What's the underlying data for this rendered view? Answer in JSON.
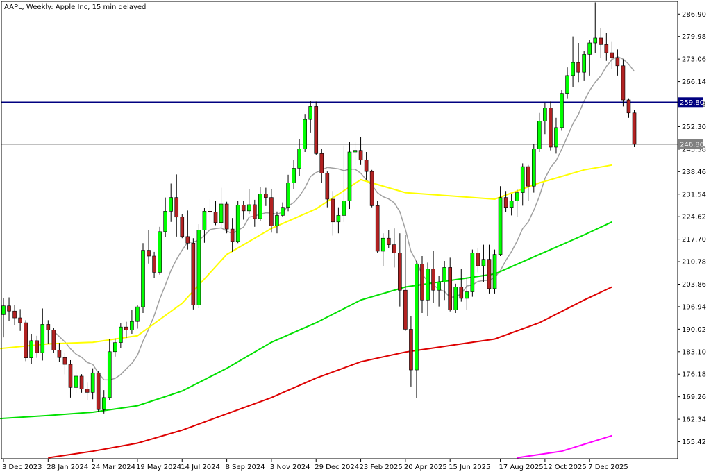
{
  "chart_data": {
    "type": "candlestick",
    "title": "AAPL, Weekly:  Apple Inc, 15 min delayed",
    "ylim": [
      150.2,
      290.8
    ],
    "yticks": [
      155.42,
      162.34,
      169.26,
      176.18,
      183.1,
      190.02,
      196.94,
      203.86,
      210.78,
      217.7,
      224.62,
      231.54,
      238.46,
      245.38,
      252.3,
      259.22,
      266.14,
      273.06,
      279.98,
      286.9
    ],
    "ytick_labels": [
      "155.42",
      "162.34",
      "169.26",
      "176.18",
      "183.10",
      "190.02",
      "196.94",
      "203.86",
      "210.78",
      "217.70",
      "224.62",
      "231.54",
      "238.46",
      "245.38",
      "252.30",
      "259.22",
      "266.14",
      "273.06",
      "279.98",
      "286.90"
    ],
    "x_tick_labels": [
      "3 Dec 2023",
      "28 Jan 2024",
      "24 Mar 2024",
      "19 May 2024",
      "14 Jul 2024",
      "8 Sep 2024",
      "3 Nov 2024",
      "29 Dec 2024",
      "23 Feb 2025",
      "20 Apr 2025",
      "15 Jun 2025",
      "17 Aug 2025",
      "12 Oct 2025",
      "7 Dec 2025"
    ],
    "x_tick_indices": [
      0,
      8,
      16,
      24,
      32,
      40,
      48,
      56,
      64,
      72,
      80,
      89,
      97,
      105
    ],
    "horizontal_line": {
      "value": 259.8,
      "label": "259.80",
      "color": "#000080"
    },
    "current_price": {
      "value": 246.86,
      "label": "246.86",
      "color": "#808080"
    },
    "colors": {
      "bull": "#00ff00",
      "bear": "#b22222",
      "wick": "#000000",
      "ma_gray": "#a0a0a0",
      "ma_yellow": "#ffff00",
      "ma_green": "#00e000",
      "ma_red": "#dd0000",
      "ma_magenta": "#ff00ff"
    },
    "candles": [
      [
        194.5,
        199.5,
        187.5,
        197.2
      ],
      [
        197.2,
        199.8,
        192.6,
        195.6
      ],
      [
        195.6,
        197.5,
        191.3,
        193.5
      ],
      [
        193.5,
        196.2,
        189.5,
        192.0
      ],
      [
        192.0,
        192.8,
        180.2,
        181.2
      ],
      [
        181.2,
        188.6,
        179.4,
        186.5
      ],
      [
        186.5,
        188.0,
        181.2,
        182.8
      ],
      [
        182.8,
        196.4,
        180.4,
        191.5
      ],
      [
        191.5,
        192.8,
        185.6,
        189.8
      ],
      [
        189.8,
        190.5,
        182.8,
        183.6
      ],
      [
        183.6,
        185.8,
        179.9,
        181.3
      ],
      [
        181.3,
        182.6,
        176.1,
        179.2
      ],
      [
        179.2,
        180.5,
        169.0,
        172.1
      ],
      [
        172.1,
        177.0,
        170.2,
        175.6
      ],
      [
        175.6,
        176.2,
        170.5,
        171.6
      ],
      [
        171.6,
        173.6,
        168.3,
        170.6
      ],
      [
        170.6,
        178.0,
        168.5,
        176.6
      ],
      [
        176.6,
        177.1,
        164.5,
        165.3
      ],
      [
        165.3,
        171.3,
        164.1,
        169.0
      ],
      [
        169.0,
        187.0,
        168.2,
        183.1
      ],
      [
        183.1,
        187.2,
        181.6,
        185.9
      ],
      [
        185.9,
        191.8,
        184.3,
        190.7
      ],
      [
        190.7,
        192.3,
        187.3,
        189.8
      ],
      [
        189.8,
        196.0,
        188.6,
        192.4
      ],
      [
        192.4,
        197.5,
        190.2,
        196.9
      ],
      [
        196.9,
        216.5,
        195.0,
        214.3
      ],
      [
        214.3,
        220.5,
        210.2,
        212.5
      ],
      [
        212.5,
        213.8,
        205.7,
        207.5
      ],
      [
        207.5,
        221.5,
        206.8,
        220.0
      ],
      [
        220.0,
        230.5,
        218.4,
        226.3
      ],
      [
        226.3,
        234.8,
        223.0,
        230.5
      ],
      [
        230.5,
        237.6,
        218.5,
        224.5
      ],
      [
        224.5,
        225.5,
        218.0,
        218.5
      ],
      [
        218.5,
        226.5,
        214.5,
        216.5
      ],
      [
        216.5,
        218.0,
        196.1,
        197.5
      ],
      [
        197.5,
        222.3,
        196.5,
        220.5
      ],
      [
        220.5,
        227.3,
        216.6,
        226.3
      ],
      [
        226.3,
        230.0,
        223.6,
        226.0
      ],
      [
        226.0,
        229.4,
        222.0,
        222.8
      ],
      [
        222.8,
        233.5,
        221.0,
        228.5
      ],
      [
        228.5,
        229.2,
        219.5,
        220.8
      ],
      [
        220.8,
        224.2,
        213.8,
        217.0
      ],
      [
        217.0,
        229.5,
        216.5,
        228.2
      ],
      [
        228.2,
        229.5,
        223.7,
        226.4
      ],
      [
        226.4,
        233.1,
        225.5,
        228.3
      ],
      [
        228.3,
        229.8,
        221.5,
        224.0
      ],
      [
        224.0,
        233.8,
        223.2,
        231.6
      ],
      [
        231.6,
        233.5,
        227.9,
        230.5
      ],
      [
        230.5,
        233.0,
        219.7,
        221.8
      ],
      [
        221.8,
        226.2,
        219.5,
        225.0
      ],
      [
        225.0,
        229.0,
        224.5,
        227.5
      ],
      [
        227.5,
        237.5,
        226.3,
        235.0
      ],
      [
        235.0,
        242.0,
        233.0,
        239.5
      ],
      [
        239.5,
        248.5,
        237.2,
        245.5
      ],
      [
        245.5,
        256.2,
        244.5,
        254.5
      ],
      [
        254.5,
        260.1,
        250.5,
        258.5
      ],
      [
        258.5,
        260.0,
        243.5,
        244.0
      ],
      [
        244.0,
        245.5,
        235.0,
        238.0
      ],
      [
        238.0,
        238.5,
        227.5,
        230.0
      ],
      [
        230.0,
        232.5,
        218.8,
        223.0
      ],
      [
        223.0,
        227.5,
        219.5,
        225.0
      ],
      [
        225.0,
        246.5,
        223.0,
        229.5
      ],
      [
        229.5,
        247.6,
        227.0,
        244.5
      ],
      [
        244.5,
        247.5,
        240.5,
        245.0
      ],
      [
        245.0,
        249.0,
        240.5,
        242.0
      ],
      [
        242.0,
        244.5,
        236.0,
        238.5
      ],
      [
        238.5,
        239.0,
        227.5,
        228.0
      ],
      [
        228.0,
        229.5,
        213.5,
        214.0
      ],
      [
        214.0,
        219.5,
        209.5,
        218.0
      ],
      [
        218.0,
        220.5,
        215.0,
        216.0
      ],
      [
        216.0,
        221.0,
        209.0,
        213.5
      ],
      [
        213.5,
        219.5,
        197.0,
        202.0
      ],
      [
        202.0,
        219.0,
        189.5,
        190.0
      ],
      [
        190.0,
        194.0,
        172.4,
        177.5
      ],
      [
        177.5,
        211.0,
        168.8,
        210.0
      ],
      [
        210.0,
        212.5,
        195.0,
        199.0
      ],
      [
        199.0,
        210.5,
        194.0,
        208.5
      ],
      [
        208.5,
        214.0,
        198.0,
        202.0
      ],
      [
        202.0,
        206.5,
        197.0,
        204.5
      ],
      [
        204.5,
        211.0,
        199.0,
        209.0
      ],
      [
        209.0,
        212.0,
        195.5,
        196.0
      ],
      [
        196.0,
        204.0,
        195.0,
        203.0
      ],
      [
        203.0,
        208.5,
        198.5,
        199.5
      ],
      [
        199.5,
        206.0,
        196.0,
        201.5
      ],
      [
        201.5,
        214.5,
        200.0,
        213.5
      ],
      [
        213.5,
        215.0,
        207.5,
        209.5
      ],
      [
        209.5,
        216.0,
        204.5,
        211.5
      ],
      [
        211.5,
        216.0,
        201.0,
        202.5
      ],
      [
        202.5,
        214.5,
        201.0,
        213.0
      ],
      [
        213.0,
        234.0,
        212.5,
        230.5
      ],
      [
        230.5,
        232.5,
        226.0,
        227.5
      ],
      [
        227.5,
        231.5,
        225.0,
        229.5
      ],
      [
        229.5,
        233.0,
        224.5,
        232.0
      ],
      [
        232.0,
        241.0,
        228.0,
        240.0
      ],
      [
        240.0,
        240.5,
        229.5,
        234.0
      ],
      [
        234.0,
        247.0,
        232.0,
        245.5
      ],
      [
        245.5,
        256.5,
        244.5,
        254.0
      ],
      [
        254.0,
        259.5,
        250.0,
        258.0
      ],
      [
        258.0,
        260.0,
        245.0,
        246.0
      ],
      [
        246.0,
        255.0,
        244.0,
        252.0
      ],
      [
        252.0,
        263.5,
        251.0,
        262.5
      ],
      [
        262.5,
        270.5,
        261.0,
        268.0
      ],
      [
        268.0,
        280.0,
        264.5,
        272.0
      ],
      [
        272.0,
        278.0,
        266.0,
        269.0
      ],
      [
        269.0,
        275.5,
        266.5,
        274.5
      ],
      [
        274.5,
        279.0,
        268.0,
        278.0
      ],
      [
        278.0,
        290.5,
        275.0,
        279.5
      ],
      [
        279.5,
        282.5,
        273.5,
        277.5
      ],
      [
        277.5,
        281.0,
        272.5,
        275.0
      ],
      [
        275.0,
        278.5,
        270.0,
        273.5
      ],
      [
        273.5,
        276.0,
        268.0,
        271.0
      ],
      [
        271.0,
        273.0,
        258.5,
        260.5
      ],
      [
        260.5,
        261.0,
        255.0,
        256.5
      ],
      [
        256.5,
        257.5,
        246.0,
        246.86
      ]
    ]
  }
}
